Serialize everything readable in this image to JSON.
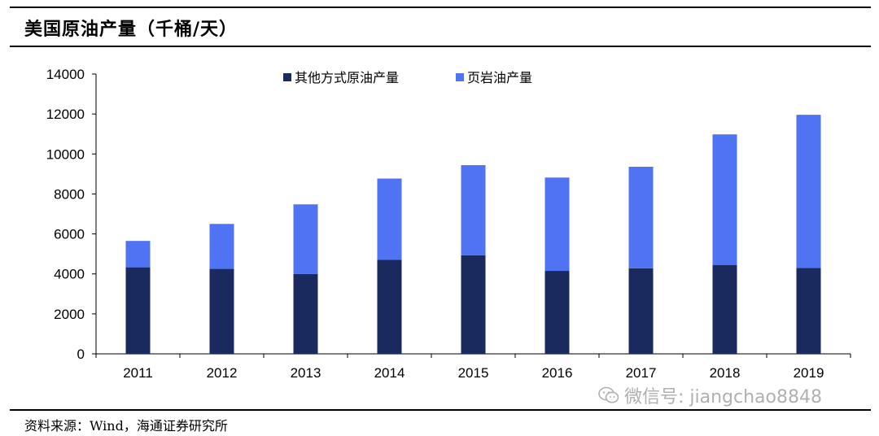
{
  "header": {
    "title": "美国原油产量（千桶/天）"
  },
  "footer": {
    "source": "资料来源：Wind，海通证券研究所"
  },
  "watermark": {
    "text": "微信号: jiangchao8848",
    "icon": "wechat-icon"
  },
  "colors": {
    "other": "#1b2a5e",
    "shale": "#4f73f3"
  },
  "chart_data": {
    "type": "bar",
    "stacked": true,
    "categories": [
      "2011",
      "2012",
      "2013",
      "2014",
      "2015",
      "2016",
      "2017",
      "2018",
      "2019"
    ],
    "series": [
      {
        "name": "其他方式原油产量",
        "values": [
          4330,
          4250,
          4000,
          4700,
          4930,
          4150,
          4280,
          4450,
          4300
        ]
      },
      {
        "name": "页岩油产量",
        "values": [
          1320,
          2250,
          3480,
          4070,
          4510,
          4670,
          5080,
          6530,
          7660
        ]
      }
    ],
    "ylim": [
      0,
      14000
    ],
    "yticks": [
      0,
      2000,
      4000,
      6000,
      8000,
      10000,
      12000,
      14000
    ],
    "legend_position": "top-center",
    "grid": false
  }
}
